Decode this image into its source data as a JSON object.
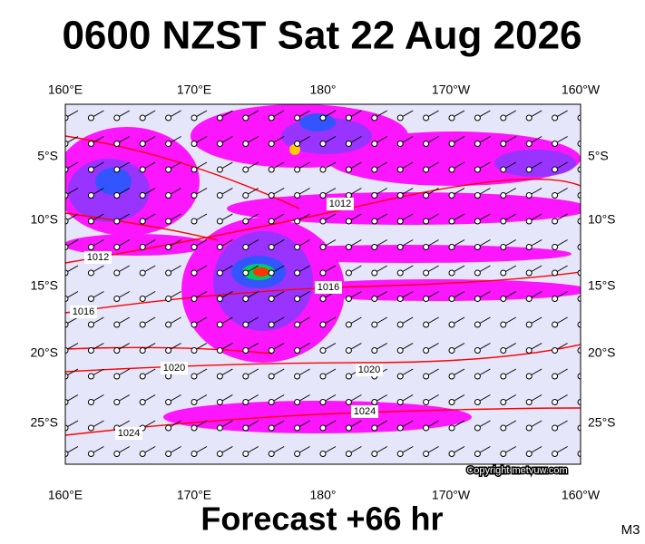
{
  "header": {
    "title": "0600 NZST Sat 22 Aug 2026"
  },
  "map": {
    "lon_labels": [
      "160°E",
      "170°E",
      "180°",
      "170°W",
      "160°W"
    ],
    "lat_labels": [
      "5°S",
      "10°S",
      "15°S",
      "20°S",
      "25°S"
    ],
    "isobar_labels": [
      "1012",
      "1012",
      "1016",
      "1016",
      "1020",
      "1020",
      "1024",
      "1024"
    ],
    "copyright": "Copyright metvuw.com"
  },
  "footer": {
    "forecast": "Forecast +66 hr",
    "model": "M3"
  }
}
